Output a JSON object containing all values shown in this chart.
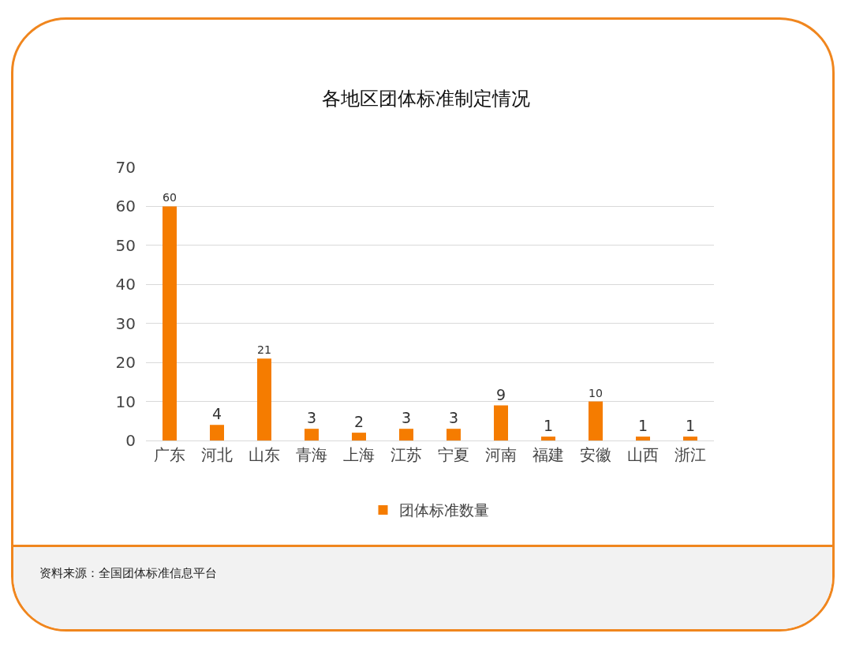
{
  "chart_data": {
    "type": "bar",
    "title": "各地区团体标准制定情况",
    "categories": [
      "广东",
      "河北",
      "山东",
      "青海",
      "上海",
      "江苏",
      "宁夏",
      "河南",
      "福建",
      "安徽",
      "山西",
      "浙江"
    ],
    "series": [
      {
        "name": "团体标准数量",
        "color": "#f57c00",
        "values": [
          60,
          4,
          21,
          3,
          2,
          3,
          3,
          9,
          1,
          10,
          1,
          1
        ]
      }
    ],
    "ylim": [
      0,
      70
    ],
    "yticks": [
      0,
      10,
      20,
      30,
      40,
      50,
      60,
      70
    ],
    "grid": "y",
    "legend": "bottom",
    "data_labels": true,
    "annotations": [
      "资料来源：全国团体标准信息平台"
    ]
  }
}
